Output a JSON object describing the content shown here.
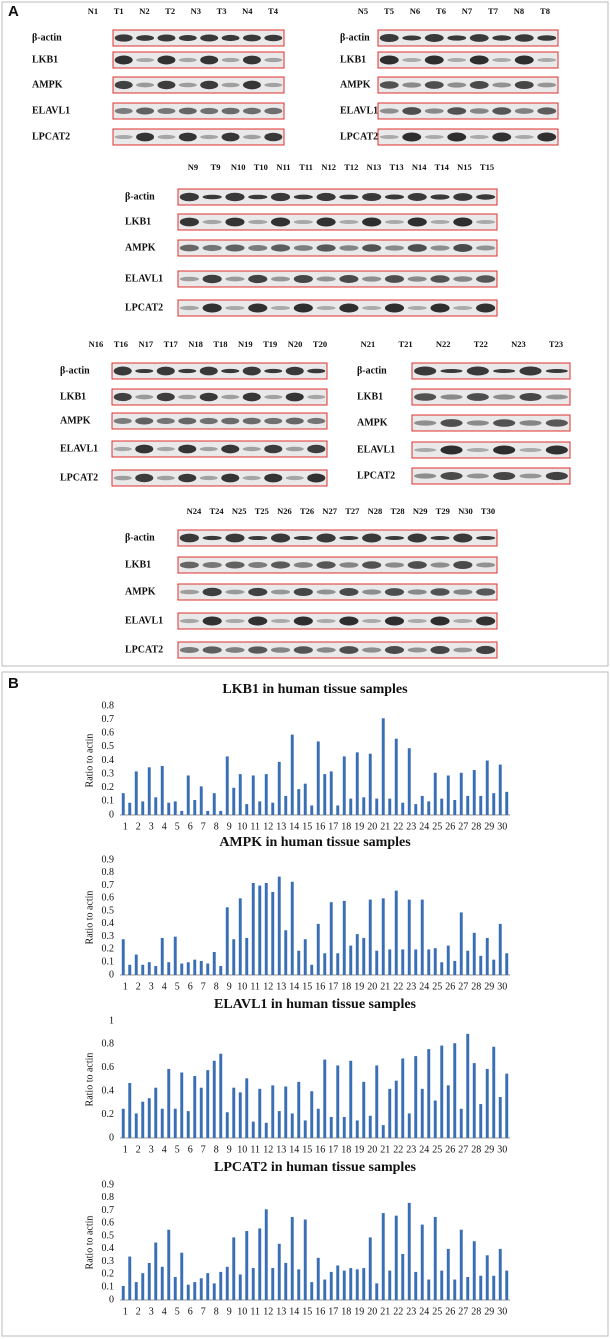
{
  "panel_a": {
    "label": "A",
    "blots": [
      {
        "lanes": [
          "N1",
          "T1",
          "N2",
          "T2",
          "N3",
          "T3",
          "N4",
          "T4"
        ],
        "rows": [
          "β-actin",
          "LKB1",
          "AMPK",
          "ELAVL1",
          "LPCAT2"
        ]
      },
      {
        "lanes": [
          "N5",
          "T5",
          "N6",
          "T6",
          "N7",
          "T7",
          "N8",
          "T8"
        ],
        "rows": [
          "β-actin",
          "LKB1",
          "AMPK",
          "ELAVL1",
          "LPCAT2"
        ]
      },
      {
        "lanes": [
          "N9",
          "T9",
          "N10",
          "T10",
          "N11",
          "T11",
          "N12",
          "T12",
          "N13",
          "T13",
          "N14",
          "T14",
          "N15",
          "T15"
        ],
        "rows": [
          "β-actin",
          "LKB1",
          "AMPK",
          "ELAVL1",
          "LPCAT2"
        ]
      },
      {
        "lanes": [
          "N16",
          "T16",
          "N17",
          "T17",
          "N18",
          "T18",
          "N19",
          "T19",
          "N20",
          "T20"
        ],
        "rows": [
          "β-actin",
          "LKB1",
          "AMPK",
          "ELAVL1",
          "LPCAT2"
        ]
      },
      {
        "lanes": [
          "N21",
          "T21",
          "N22",
          "T22",
          "N23",
          "T23"
        ],
        "rows": [
          "β-actin",
          "LKB1",
          "AMPK",
          "ELAVL1",
          "LPCAT2"
        ]
      },
      {
        "lanes": [
          "N24",
          "T24",
          "N25",
          "T25",
          "N26",
          "T26",
          "N27",
          "T27",
          "N28",
          "T28",
          "N29",
          "T29",
          "N30",
          "T30"
        ],
        "rows": [
          "β-actin",
          "LKB1",
          "AMPK",
          "ELAVL1",
          "LPCAT2"
        ]
      }
    ]
  },
  "panel_b_label": "B",
  "chart_data": [
    {
      "type": "bar",
      "title": "LKB1 in human tissue samples",
      "y_label": "Ratio to actin",
      "color": "#3a6fb5",
      "categories": [
        "1",
        null,
        "2",
        null,
        "3",
        null,
        "4",
        null,
        "5",
        null,
        "6",
        null,
        "7",
        null,
        "8",
        null,
        "9",
        null,
        "10",
        null,
        "11",
        null,
        "12",
        null,
        "13",
        null,
        "14",
        null,
        "15",
        null,
        "16",
        null,
        "17",
        null,
        "18",
        null,
        "19",
        null,
        "20",
        null,
        "21",
        null,
        "22",
        null,
        "23",
        null,
        "24",
        null,
        "25",
        null,
        "26",
        null,
        "27",
        null,
        "28",
        null,
        "29",
        null,
        "30",
        null
      ],
      "values": [
        0.16,
        0.09,
        0.32,
        0.1,
        0.35,
        0.13,
        0.36,
        0.09,
        0.1,
        0.03,
        0.29,
        0.11,
        0.21,
        0.03,
        0.16,
        0.03,
        0.43,
        0.2,
        0.3,
        0.08,
        0.29,
        0.1,
        0.3,
        0.09,
        0.39,
        0.14,
        0.59,
        0.19,
        0.23,
        0.07,
        0.54,
        0.3,
        0.32,
        0.07,
        0.43,
        0.12,
        0.46,
        0.13,
        0.45,
        0.12,
        0.71,
        0.12,
        0.56,
        0.09,
        0.49,
        0.08,
        0.14,
        0.1,
        0.31,
        0.12,
        0.29,
        0.11,
        0.31,
        0.14,
        0.33,
        0.14,
        0.4,
        0.16,
        0.37,
        0.17
      ],
      "ylim": [
        0,
        0.8
      ],
      "yticks": [
        0,
        0.1,
        0.2,
        0.3,
        0.4,
        0.5,
        0.6,
        0.7,
        0.8
      ]
    },
    {
      "type": "bar",
      "title": "AMPK in human tissue samples",
      "y_label": "Ratio to actin",
      "color": "#3a6fb5",
      "categories": [
        "1",
        null,
        "2",
        null,
        "3",
        null,
        "4",
        null,
        "5",
        null,
        "6",
        null,
        "7",
        null,
        "8",
        null,
        "9",
        null,
        "10",
        null,
        "11",
        null,
        "12",
        null,
        "13",
        null,
        "14",
        null,
        "15",
        null,
        "16",
        null,
        "17",
        null,
        "18",
        null,
        "19",
        null,
        "20",
        null,
        "21",
        null,
        "22",
        null,
        "23",
        null,
        "24",
        null,
        "25",
        null,
        "26",
        null,
        "27",
        null,
        "28",
        null,
        "29",
        null,
        "30",
        null
      ],
      "values": [
        0.28,
        0.08,
        0.16,
        0.08,
        0.1,
        0.07,
        0.29,
        0.1,
        0.3,
        0.09,
        0.1,
        0.12,
        0.11,
        0.09,
        0.18,
        0.07,
        0.53,
        0.28,
        0.6,
        0.29,
        0.72,
        0.7,
        0.72,
        0.65,
        0.77,
        0.35,
        0.73,
        0.19,
        0.28,
        0.08,
        0.4,
        0.17,
        0.57,
        0.17,
        0.58,
        0.23,
        0.32,
        0.29,
        0.59,
        0.19,
        0.6,
        0.2,
        0.66,
        0.2,
        0.59,
        0.2,
        0.59,
        0.2,
        0.21,
        0.1,
        0.23,
        0.11,
        0.49,
        0.19,
        0.33,
        0.15,
        0.29,
        0.12,
        0.4,
        0.17
      ],
      "ylim": [
        0,
        0.9
      ],
      "yticks": [
        0,
        0.1,
        0.2,
        0.3,
        0.4,
        0.5,
        0.6,
        0.7,
        0.8,
        0.9
      ]
    },
    {
      "type": "bar",
      "title": "ELAVL1 in human tissue samples",
      "y_label": "Ratio to actin",
      "color": "#3a6fb5",
      "categories": [
        "1",
        null,
        "2",
        null,
        "3",
        null,
        "4",
        null,
        "5",
        null,
        "6",
        null,
        "7",
        null,
        "8",
        null,
        "9",
        null,
        "10",
        null,
        "11",
        null,
        "12",
        null,
        "13",
        null,
        "14",
        null,
        "15",
        null,
        "16",
        null,
        "17",
        null,
        "18",
        null,
        "19",
        null,
        "20",
        null,
        "21",
        null,
        "22",
        null,
        "23",
        null,
        "24",
        null,
        "25",
        null,
        "26",
        null,
        "27",
        null,
        "28",
        null,
        "29",
        null,
        "30",
        null
      ],
      "values": [
        0.25,
        0.47,
        0.21,
        0.31,
        0.34,
        0.43,
        0.25,
        0.59,
        0.25,
        0.56,
        0.23,
        0.53,
        0.43,
        0.58,
        0.66,
        0.72,
        0.22,
        0.43,
        0.39,
        0.51,
        0.14,
        0.42,
        0.13,
        0.45,
        0.23,
        0.44,
        0.21,
        0.48,
        0.15,
        0.4,
        0.25,
        0.67,
        0.18,
        0.62,
        0.18,
        0.66,
        0.15,
        0.48,
        0.19,
        0.62,
        0.11,
        0.42,
        0.49,
        0.68,
        0.21,
        0.7,
        0.42,
        0.76,
        0.32,
        0.79,
        0.45,
        0.81,
        0.25,
        0.89,
        0.64,
        0.29,
        0.59,
        0.78,
        0.35,
        0.55
      ],
      "ylim": [
        0,
        1
      ],
      "yticks": [
        0,
        0.2,
        0.4,
        0.6,
        0.8,
        1
      ]
    },
    {
      "type": "bar",
      "title": "LPCAT2 in human tissue samples",
      "y_label": "Ratio to actin",
      "color": "#3a6fb5",
      "categories": [
        "1",
        null,
        "2",
        null,
        "3",
        null,
        "4",
        null,
        "5",
        null,
        "6",
        null,
        "7",
        null,
        "8",
        null,
        "9",
        null,
        "10",
        null,
        "11",
        null,
        "12",
        null,
        "13",
        null,
        "14",
        null,
        "15",
        null,
        "16",
        null,
        "17",
        null,
        "18",
        null,
        "19",
        null,
        "20",
        null,
        "21",
        null,
        "22",
        null,
        "23",
        null,
        "24",
        null,
        "25",
        null,
        "26",
        null,
        "27",
        null,
        "28",
        null,
        "29",
        null,
        "30",
        null
      ],
      "values": [
        0.11,
        0.34,
        0.14,
        0.21,
        0.29,
        0.45,
        0.26,
        0.55,
        0.18,
        0.37,
        0.12,
        0.14,
        0.17,
        0.21,
        0.13,
        0.22,
        0.26,
        0.49,
        0.2,
        0.54,
        0.25,
        0.56,
        0.71,
        0.25,
        0.44,
        0.29,
        0.65,
        0.24,
        0.63,
        0.14,
        0.33,
        0.16,
        0.22,
        0.27,
        0.23,
        0.25,
        0.24,
        0.25,
        0.49,
        0.13,
        0.68,
        0.23,
        0.66,
        0.36,
        0.76,
        0.22,
        0.59,
        0.16,
        0.65,
        0.23,
        0.4,
        0.16,
        0.55,
        0.18,
        0.46,
        0.19,
        0.35,
        0.19,
        0.4,
        0.23
      ],
      "ylim": [
        0,
        0.9
      ],
      "yticks": [
        0,
        0.1,
        0.2,
        0.3,
        0.4,
        0.5,
        0.6,
        0.7,
        0.8,
        0.9
      ]
    }
  ]
}
